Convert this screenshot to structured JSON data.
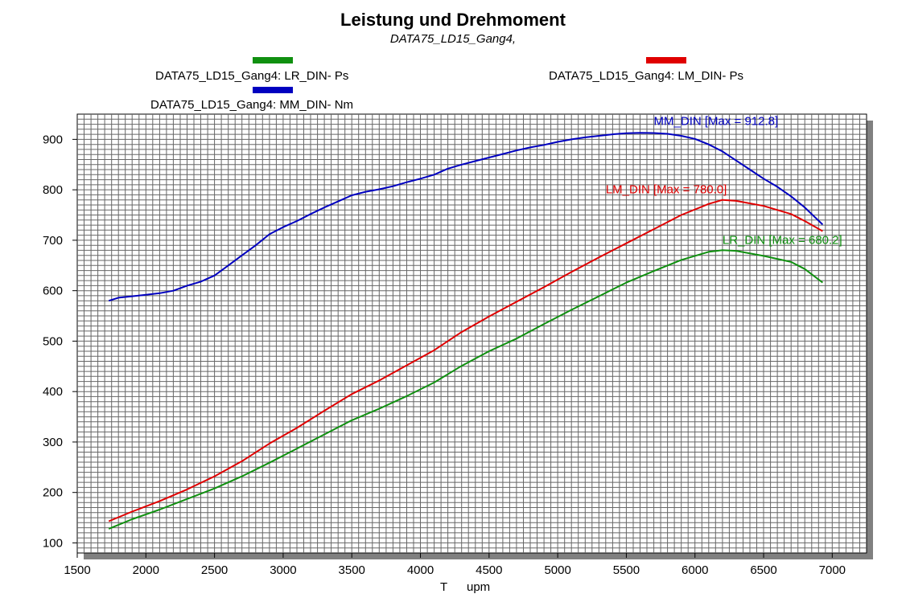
{
  "chart_data": {
    "type": "line",
    "title": "Leistung und Drehmoment",
    "subtitle": "DATA75_LD15_Gang4,",
    "xlabel": "T",
    "xunit": "upm",
    "xlim": [
      1500,
      7250
    ],
    "ylim": [
      80,
      950
    ],
    "xticks": [
      1500,
      2000,
      2500,
      3000,
      3500,
      4000,
      4500,
      5000,
      5500,
      6000,
      6500,
      7000
    ],
    "yticks": [
      100,
      200,
      300,
      400,
      500,
      600,
      700,
      800,
      900
    ],
    "grid": true,
    "legend_placement": "top",
    "series": [
      {
        "name": "MM_DIN-",
        "legend_label": "DATA75_LD15_Gang4: MM_DIN-  Nm",
        "annotation": "MM_DIN [Max = 912.8]",
        "color": "#0000c0",
        "x": [
          1730,
          1800,
          1900,
          2000,
          2100,
          2200,
          2300,
          2400,
          2500,
          2600,
          2700,
          2800,
          2900,
          3000,
          3100,
          3200,
          3300,
          3400,
          3500,
          3600,
          3700,
          3800,
          3900,
          4000,
          4100,
          4200,
          4300,
          4400,
          4500,
          4600,
          4700,
          4800,
          4900,
          5000,
          5100,
          5200,
          5300,
          5400,
          5500,
          5600,
          5700,
          5800,
          5900,
          6000,
          6100,
          6200,
          6300,
          6400,
          6500,
          6600,
          6700,
          6800,
          6930
        ],
        "values": [
          580,
          586,
          589,
          592,
          595,
          600,
          610,
          618,
          630,
          650,
          670,
          690,
          712,
          726,
          738,
          752,
          765,
          777,
          789,
          796,
          801,
          807,
          815,
          822,
          830,
          842,
          850,
          857,
          864,
          871,
          878,
          884,
          889,
          895,
          900,
          904,
          907,
          910,
          912,
          912.8,
          912.5,
          911,
          907,
          901,
          890,
          876,
          858,
          840,
          822,
          806,
          787,
          765,
          731
        ]
      },
      {
        "name": "LM_DIN-",
        "legend_label": "DATA75_LD15_Gang4: LM_DIN-  Ps",
        "annotation": "LM_DIN [Max = 780.0]",
        "color": "#e00000",
        "x": [
          1730,
          1900,
          2100,
          2300,
          2500,
          2700,
          2900,
          3100,
          3300,
          3500,
          3700,
          3900,
          4100,
          4300,
          4500,
          4700,
          4900,
          5100,
          5300,
          5500,
          5700,
          5900,
          6100,
          6200,
          6300,
          6500,
          6700,
          6800,
          6930
        ],
        "values": [
          143,
          162,
          183,
          206,
          232,
          262,
          297,
          328,
          362,
          395,
          422,
          452,
          482,
          518,
          549,
          578,
          607,
          637,
          666,
          694,
          722,
          750,
          772,
          780,
          778,
          768,
          752,
          738,
          718
        ]
      },
      {
        "name": "LR_DIN-",
        "legend_label": "DATA75_LD15_Gang4: LR_DIN-  Ps",
        "annotation": "LR_DIN [Max = 680.2]",
        "color": "#109010",
        "x": [
          1730,
          1900,
          2100,
          2300,
          2500,
          2700,
          2900,
          3100,
          3300,
          3500,
          3700,
          3900,
          4100,
          4300,
          4500,
          4700,
          4900,
          5100,
          5300,
          5500,
          5700,
          5900,
          6100,
          6200,
          6300,
          6500,
          6700,
          6800,
          6930
        ],
        "values": [
          128,
          147,
          166,
          187,
          208,
          232,
          259,
          287,
          315,
          343,
          366,
          391,
          418,
          451,
          480,
          505,
          534,
          562,
          589,
          616,
          639,
          661,
          677,
          680.2,
          679,
          669,
          657,
          643,
          616
        ]
      }
    ]
  }
}
